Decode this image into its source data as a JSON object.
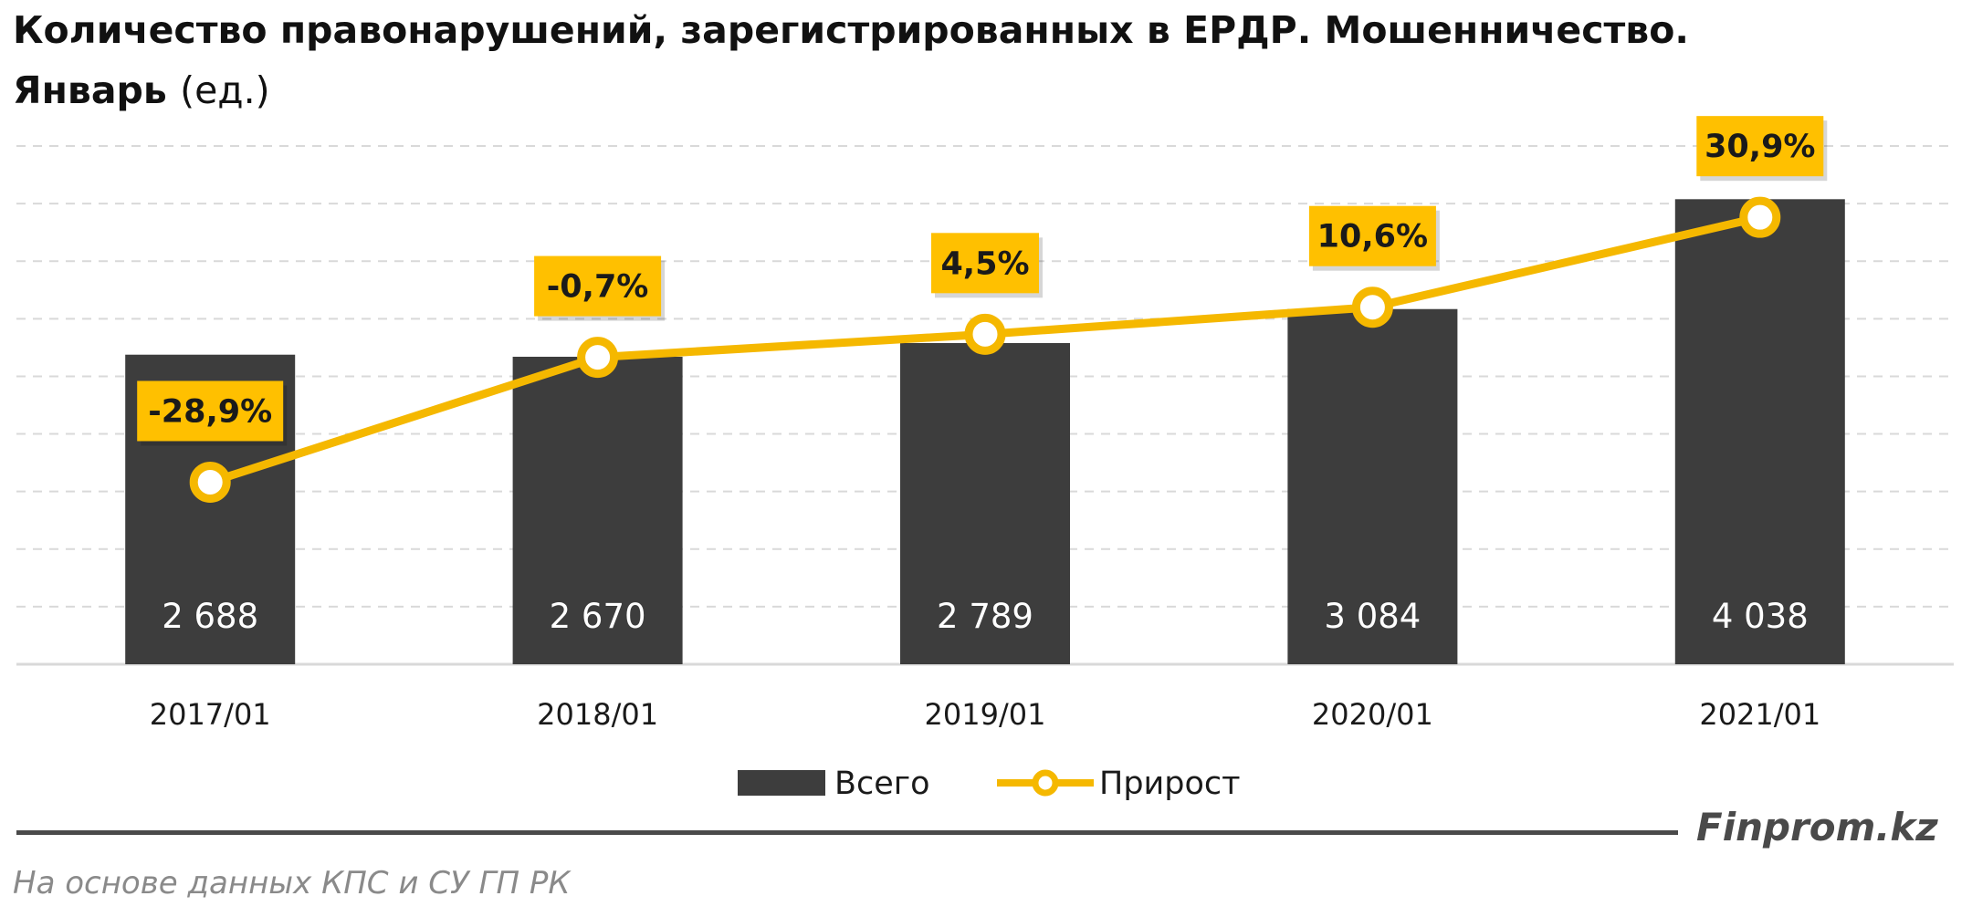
{
  "title": {
    "main": "Количество правонарушений, зарегистрированных в ЕРДР. Мошенничество.",
    "line2_bold": "Январь",
    "line2_unit": "(ед.)"
  },
  "brand": "Finprom.kz",
  "source": "На основе данных КПС и СУ ГП РК",
  "colors": {
    "bar": "#3d3d3d",
    "line": "#f5b800",
    "label_box": "#ffc000",
    "grid": "#d9d9d9",
    "bar_label": "#ffffff"
  },
  "chart_data": {
    "type": "bar",
    "categories": [
      "2017/01",
      "2018/01",
      "2019/01",
      "2020/01",
      "2021/01"
    ],
    "series": [
      {
        "name": "Всего",
        "type": "bar",
        "values": [
          2688,
          2670,
          2789,
          3084,
          4038
        ],
        "labels": [
          "2 688",
          "2 670",
          "2 789",
          "3 084",
          "4 038"
        ]
      },
      {
        "name": "Прирост",
        "type": "line",
        "marker": "circle",
        "values": [
          -28.9,
          -0.7,
          4.5,
          10.6,
          30.9
        ],
        "labels": [
          "-28,9%",
          "-0,7%",
          "4,5%",
          "10,6%",
          "30,9%"
        ]
      }
    ],
    "bar_axis": {
      "ylim": [
        0,
        4500
      ]
    },
    "line_axis": {
      "ylim": [
        -70,
        47
      ]
    },
    "grid": true,
    "legend": {
      "position": "bottom-center",
      "entries": [
        "Всего",
        "Прирост"
      ]
    }
  }
}
